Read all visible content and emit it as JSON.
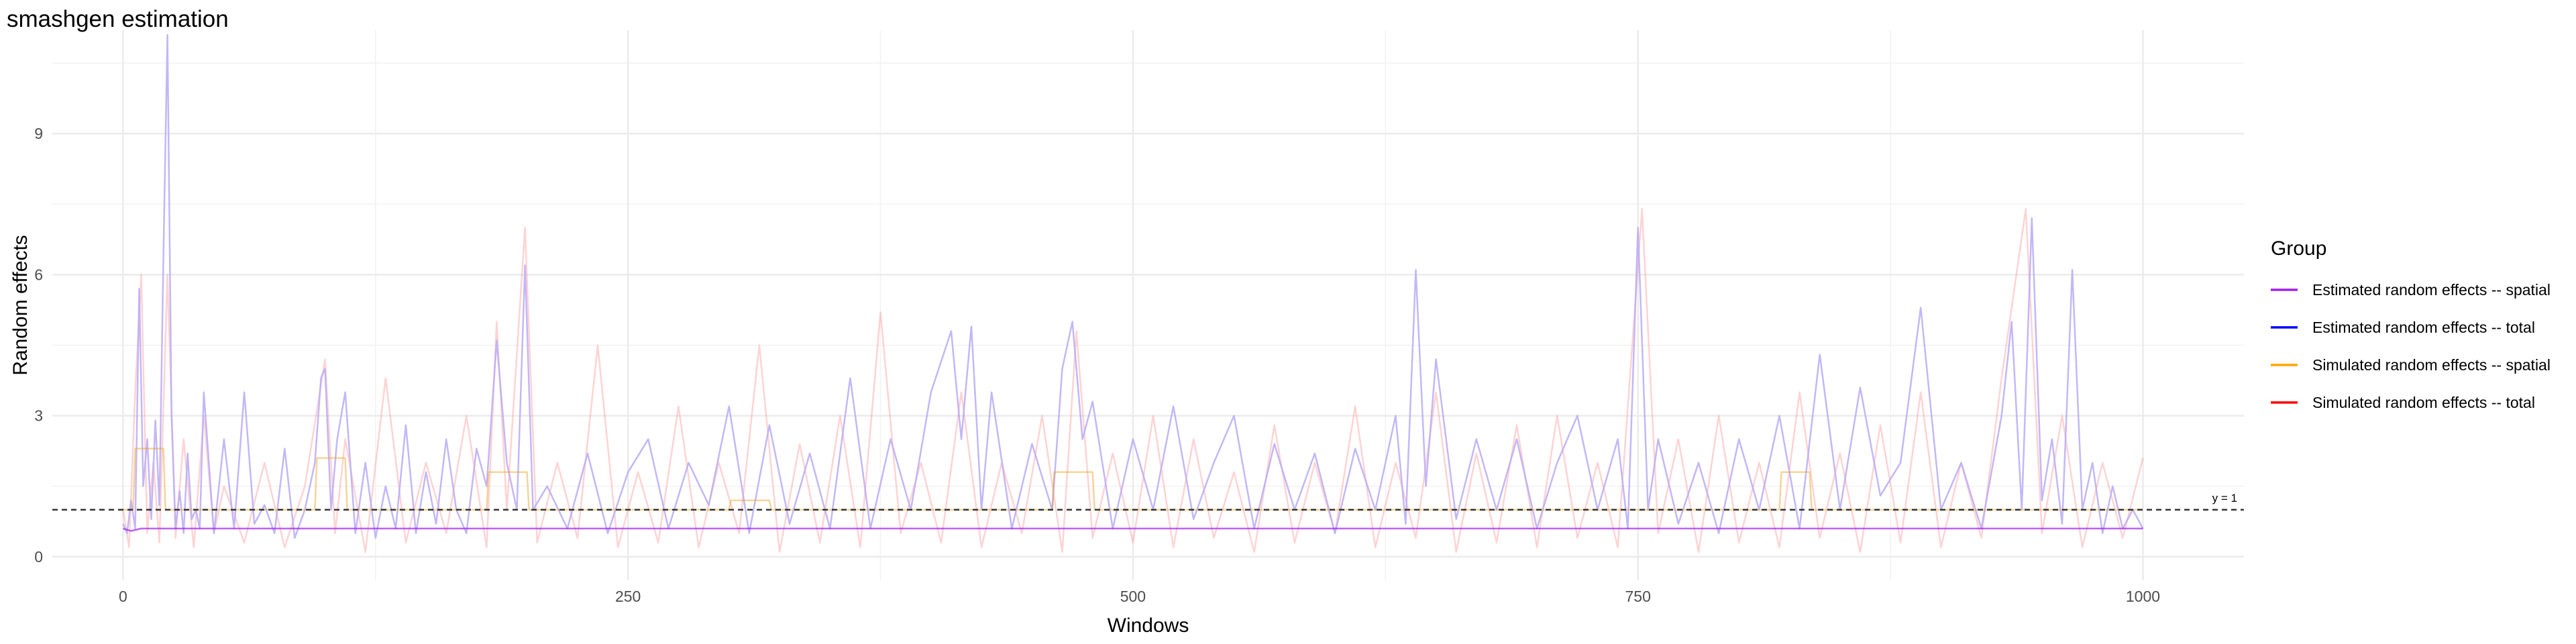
{
  "chart_data": {
    "type": "line",
    "title": "smashgen estimation",
    "xlabel": "Windows",
    "ylabel": "Random effects",
    "xlim": [
      -35,
      1050
    ],
    "ylim": [
      -0.5,
      11.2
    ],
    "x_ticks": [
      0,
      250,
      500,
      750,
      1000
    ],
    "y_ticks": [
      0,
      3,
      6,
      9
    ],
    "grid": true,
    "legend": {
      "title": "Group",
      "placement": "right"
    },
    "reference_line": {
      "y": 1,
      "label": "y = 1",
      "style": "dashed",
      "color": "#333333"
    },
    "series": [
      {
        "name": "Estimated random effects -- spatial",
        "color": "#a020f0",
        "legend_color": "#a020f0",
        "opacity": 0.7,
        "x": [
          0,
          4,
          9,
          14,
          19,
          20,
          50,
          100,
          150,
          200,
          250,
          300,
          350,
          400,
          450,
          500,
          550,
          600,
          650,
          700,
          750,
          800,
          850,
          900,
          950,
          1000
        ],
        "values": [
          0.6,
          0.55,
          0.6,
          0.6,
          0.6,
          0.6,
          0.6,
          0.6,
          0.6,
          0.6,
          0.6,
          0.6,
          0.6,
          0.6,
          0.6,
          0.6,
          0.6,
          0.6,
          0.6,
          0.6,
          0.6,
          0.6,
          0.6,
          0.6,
          0.6,
          0.6
        ]
      },
      {
        "name": "Estimated random effects -- total",
        "color": "#b8aaf7",
        "legend_color": "#0000ff",
        "opacity": 0.85,
        "x": [
          0,
          2,
          4,
          6,
          8,
          10,
          12,
          14,
          16,
          18,
          20,
          22,
          24,
          26,
          28,
          30,
          32,
          34,
          36,
          38,
          40,
          45,
          50,
          55,
          60,
          65,
          70,
          75,
          80,
          85,
          90,
          95,
          98,
          100,
          103,
          106,
          110,
          115,
          120,
          125,
          130,
          135,
          140,
          145,
          150,
          155,
          160,
          165,
          170,
          175,
          180,
          185,
          190,
          195,
          199,
          203,
          210,
          220,
          230,
          240,
          250,
          260,
          270,
          280,
          290,
          300,
          310,
          320,
          330,
          340,
          350,
          360,
          370,
          380,
          390,
          400,
          410,
          415,
          420,
          425,
          430,
          440,
          450,
          460,
          465,
          470,
          475,
          480,
          490,
          500,
          510,
          520,
          530,
          540,
          550,
          560,
          570,
          580,
          590,
          600,
          610,
          620,
          630,
          635,
          640,
          645,
          650,
          660,
          670,
          680,
          690,
          700,
          710,
          720,
          730,
          740,
          745,
          750,
          755,
          760,
          770,
          780,
          790,
          800,
          810,
          820,
          830,
          840,
          850,
          860,
          870,
          880,
          890,
          900,
          910,
          920,
          930,
          935,
          940,
          945,
          950,
          955,
          960,
          965,
          970,
          975,
          980,
          985,
          990,
          995,
          1000
        ],
        "values": [
          0.7,
          0.5,
          1.2,
          0.6,
          5.7,
          1.5,
          2.5,
          0.8,
          2.9,
          1.1,
          6.4,
          11.1,
          3.0,
          0.6,
          1.4,
          0.5,
          2.2,
          0.8,
          1.0,
          0.6,
          3.5,
          0.5,
          2.5,
          0.6,
          3.5,
          0.7,
          1.1,
          0.5,
          2.3,
          0.4,
          1.0,
          2.0,
          3.8,
          4.0,
          1.0,
          2.5,
          3.5,
          0.5,
          2.0,
          0.4,
          1.5,
          0.6,
          2.8,
          0.5,
          1.8,
          0.7,
          2.5,
          1.0,
          0.5,
          2.3,
          1.5,
          4.6,
          2.0,
          1.0,
          6.2,
          1.0,
          1.5,
          0.6,
          2.2,
          0.5,
          1.8,
          2.5,
          0.6,
          2.0,
          1.1,
          3.2,
          0.5,
          2.8,
          0.7,
          2.2,
          0.6,
          3.8,
          0.6,
          2.5,
          1.0,
          3.5,
          4.8,
          2.5,
          4.9,
          1.0,
          3.5,
          0.6,
          2.4,
          1.0,
          4.0,
          5.0,
          2.5,
          3.3,
          0.6,
          2.5,
          1.0,
          3.2,
          0.8,
          2.0,
          3.0,
          0.6,
          2.4,
          1.0,
          2.2,
          0.5,
          2.3,
          1.0,
          3.0,
          0.7,
          6.1,
          1.5,
          4.2,
          0.8,
          2.5,
          1.0,
          2.5,
          0.6,
          2.0,
          3.0,
          1.0,
          2.5,
          0.6,
          7.0,
          1.0,
          2.5,
          0.7,
          2.0,
          0.5,
          2.5,
          1.0,
          3.0,
          0.6,
          4.3,
          1.0,
          3.6,
          1.3,
          2.0,
          5.3,
          1.0,
          2.0,
          0.6,
          3.0,
          5.0,
          1.0,
          7.2,
          1.2,
          2.5,
          0.7,
          6.1,
          1.0,
          2.0,
          0.5,
          1.5,
          0.6,
          1.0,
          0.6
        ]
      },
      {
        "name": "Simulated random effects -- spatial",
        "color": "#e8a020",
        "legend_color": "#ffa500",
        "opacity": 0.45,
        "x": [
          0,
          5,
          6,
          20,
          21,
          40,
          60,
          80,
          95,
          96,
          110,
          111,
          130,
          150,
          170,
          180,
          181,
          200,
          201,
          220,
          260,
          300,
          301,
          320,
          321,
          360,
          400,
          440,
          460,
          461,
          480,
          481,
          520,
          560,
          600,
          640,
          680,
          720,
          760,
          800,
          820,
          821,
          835,
          836,
          870,
          910,
          950,
          1000
        ],
        "values": [
          1.0,
          1.0,
          2.3,
          2.3,
          1.0,
          1.0,
          1.0,
          1.0,
          1.0,
          2.1,
          2.1,
          1.0,
          1.0,
          1.0,
          1.0,
          1.0,
          1.8,
          1.8,
          1.0,
          1.0,
          1.0,
          1.0,
          1.2,
          1.2,
          1.0,
          1.0,
          1.0,
          1.0,
          1.0,
          1.8,
          1.8,
          1.0,
          1.0,
          1.0,
          1.0,
          1.0,
          1.0,
          1.0,
          1.0,
          1.0,
          1.0,
          1.8,
          1.8,
          1.0,
          1.0,
          1.0,
          1.0,
          1.0
        ]
      },
      {
        "name": "Simulated random effects -- total",
        "color": "#ff8080",
        "legend_color": "#ff0000",
        "opacity": 0.35,
        "x": [
          0,
          3,
          6,
          9,
          12,
          15,
          18,
          22,
          26,
          30,
          35,
          40,
          45,
          50,
          60,
          70,
          80,
          90,
          100,
          105,
          110,
          120,
          130,
          140,
          150,
          160,
          170,
          180,
          185,
          190,
          199,
          205,
          215,
          225,
          235,
          245,
          255,
          265,
          275,
          285,
          295,
          305,
          315,
          325,
          335,
          345,
          355,
          365,
          375,
          385,
          395,
          405,
          415,
          425,
          435,
          445,
          455,
          465,
          472,
          480,
          490,
          500,
          510,
          520,
          530,
          540,
          550,
          560,
          570,
          580,
          590,
          600,
          610,
          620,
          630,
          640,
          650,
          660,
          670,
          680,
          690,
          700,
          710,
          720,
          730,
          740,
          752,
          760,
          770,
          780,
          790,
          800,
          810,
          820,
          830,
          840,
          850,
          860,
          870,
          880,
          890,
          900,
          910,
          920,
          930,
          942,
          950,
          960,
          970,
          980,
          990,
          1000
        ],
        "values": [
          1.0,
          0.2,
          3.5,
          6.0,
          0.5,
          2.0,
          0.3,
          6.0,
          0.4,
          2.5,
          0.2,
          3.0,
          0.5,
          1.5,
          0.3,
          2.0,
          0.2,
          1.5,
          4.2,
          0.5,
          2.5,
          0.1,
          3.8,
          0.3,
          2.0,
          0.5,
          3.0,
          0.2,
          5.0,
          1.0,
          7.0,
          0.3,
          2.0,
          0.4,
          4.5,
          0.2,
          1.8,
          0.3,
          3.2,
          0.2,
          2.0,
          0.5,
          4.5,
          0.1,
          2.4,
          0.3,
          3.0,
          0.2,
          5.2,
          0.5,
          2.0,
          0.3,
          3.5,
          0.2,
          2.0,
          0.5,
          3.0,
          0.1,
          4.8,
          0.4,
          2.2,
          0.3,
          3.0,
          0.2,
          2.5,
          0.4,
          1.8,
          0.1,
          2.8,
          0.3,
          2.0,
          0.5,
          3.2,
          0.2,
          2.0,
          0.4,
          3.5,
          0.1,
          2.2,
          0.3,
          2.8,
          0.2,
          3.0,
          0.4,
          2.0,
          0.2,
          7.4,
          0.5,
          2.5,
          0.1,
          3.0,
          0.3,
          2.0,
          0.2,
          3.5,
          0.4,
          2.2,
          0.1,
          2.8,
          0.3,
          3.5,
          0.2,
          2.0,
          0.4,
          3.8,
          7.4,
          0.5,
          3.0,
          0.2,
          2.0,
          0.4,
          2.1
        ]
      }
    ]
  }
}
